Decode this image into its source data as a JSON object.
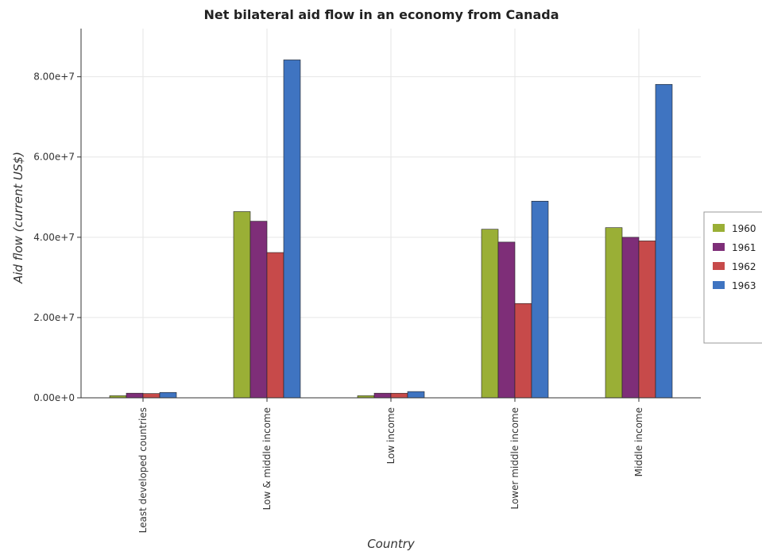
{
  "chart_data": {
    "type": "bar",
    "title": "Net bilateral aid flow in an economy from Canada",
    "xlabel": "Country",
    "ylabel": "Aid flow (current US$)",
    "categories": [
      "Least developed countries",
      "Low & middle income",
      "Low income",
      "Lower middle income",
      "Middle income"
    ],
    "series": [
      {
        "name": "1960",
        "color": "#9aaf36",
        "values": [
          520000,
          46400000,
          520000,
          42000000,
          42400000
        ]
      },
      {
        "name": "1961",
        "color": "#7e2e78",
        "values": [
          1150000,
          44000000,
          1150000,
          38800000,
          40000000
        ]
      },
      {
        "name": "1962",
        "color": "#c74a4a",
        "values": [
          1070000,
          36200000,
          1140000,
          23500000,
          39100000
        ]
      },
      {
        "name": "1963",
        "color": "#3f74c1",
        "values": [
          1340000,
          84200000,
          1560000,
          49000000,
          78100000
        ]
      }
    ],
    "ylim": [
      0,
      92000000
    ],
    "yticks": [
      0,
      20000000,
      40000000,
      60000000,
      80000000
    ],
    "ytick_labels": [
      "0.00e+0",
      "2.00e+7",
      "4.00e+7",
      "6.00e+7",
      "8.00e+7"
    ],
    "grid": true,
    "legend_position": "right"
  }
}
